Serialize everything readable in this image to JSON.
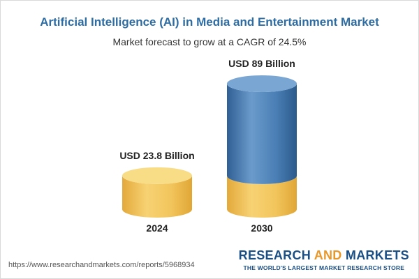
{
  "chart_data": {
    "type": "bar",
    "title": "Artificial Intelligence (AI) in Media and Entertainment Market",
    "subtitle": "Market forecast to grow at a CAGR of 24.5%",
    "categories": [
      "2024",
      "2030"
    ],
    "values": [
      23.8,
      89
    ],
    "value_labels": [
      "USD 23.8 Billion",
      "USD 89 Billion"
    ],
    "unit": "USD Billion",
    "xlabel": "",
    "ylabel": "",
    "ylim": [
      0,
      89
    ],
    "grid": false,
    "colors": {
      "base": "#f2c55c",
      "base_dark": "#e2a93a",
      "base_top": "#f9dc86",
      "growth": "#4a7fb5",
      "growth_dark": "#2f5f94",
      "growth_top": "#7aa6d3"
    }
  },
  "footer": {
    "url": "https://www.researchandmarkets.com/reports/5968934",
    "brand_part1": "RESEARCH ",
    "brand_part2": "AND",
    "brand_part3": " MARKETS",
    "tagline": "THE WORLD'S LARGEST MARKET RESEARCH STORE"
  }
}
